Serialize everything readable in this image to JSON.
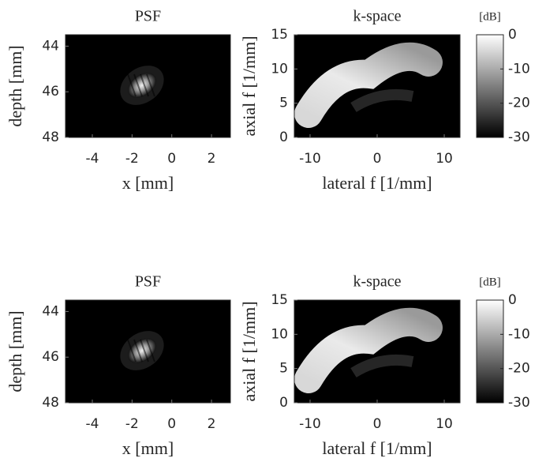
{
  "chart_data": [
    {
      "type": "image",
      "title": "PSF",
      "xlabel": "x [mm]",
      "ylabel": "depth [mm]",
      "xlim": [
        -5.35,
        2.95
      ],
      "xticks": [
        -4,
        -2,
        0,
        2
      ],
      "ylim": [
        48,
        43.5
      ],
      "yticks": [
        44,
        46,
        48
      ]
    },
    {
      "type": "image",
      "title": "k-space",
      "xlabel": "lateral f [1/mm]",
      "ylabel": "axial f [1/mm]",
      "xlim": [
        -12.35,
        12.35
      ],
      "xticks": [
        -10,
        0,
        10
      ],
      "ylim": [
        0,
        15
      ],
      "yticks": [
        0,
        5,
        10,
        15
      ],
      "colorbar": {
        "label": "[dB]",
        "lim": [
          -30,
          0
        ],
        "ticks": [
          0,
          -10,
          -20,
          -30
        ]
      }
    },
    {
      "type": "image",
      "title": "PSF",
      "xlabel": "x [mm]",
      "ylabel": "depth [mm]",
      "xlim": [
        -5.35,
        2.95
      ],
      "xticks": [
        -4,
        -2,
        0,
        2
      ],
      "ylim": [
        48,
        43.5
      ],
      "yticks": [
        44,
        46,
        48
      ]
    },
    {
      "type": "image",
      "title": "k-space",
      "xlabel": "lateral f [1/mm]",
      "ylabel": "axial f [1/mm]",
      "xlim": [
        -12.35,
        12.35
      ],
      "xticks": [
        -10,
        0,
        10
      ],
      "ylim": [
        0,
        15
      ],
      "yticks": [
        0,
        5,
        10,
        15
      ],
      "colorbar": {
        "label": "[dB]",
        "lim": [
          -30,
          0
        ],
        "ticks": [
          0,
          -10,
          -20,
          -30
        ]
      }
    }
  ]
}
